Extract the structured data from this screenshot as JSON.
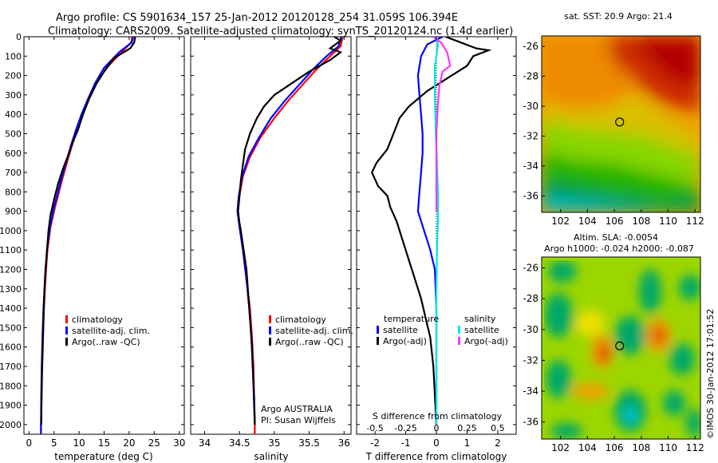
{
  "header": {
    "line1": "Argo profile: CS 5901634_157 25-Jan-2012 20120128_254 31.059S 106.394E",
    "line2": "Climatology: CARS2009. Satellite-adjusted climatology: synTS_20120124.nc (1.4d earlier)"
  },
  "side_label": "©IMOS 30-Jan-2012 17:01:52",
  "colors": {
    "climatology": "#ff0000",
    "satellite": "#0000ff",
    "argo": "#000000",
    "satellite_salinity": "#00e5e5",
    "argo_salinity": "#ff33ff"
  },
  "chart_data": [
    {
      "type": "line",
      "xlabel": "temperature (deg C)",
      "ylabel": "",
      "xlim": [
        -1,
        31
      ],
      "ylim": [
        2050,
        0
      ],
      "xticks": [
        0,
        5,
        10,
        15,
        20,
        25,
        30
      ],
      "yticks": [
        0,
        100,
        200,
        300,
        400,
        500,
        600,
        700,
        800,
        900,
        1000,
        1100,
        1200,
        1300,
        1400,
        1500,
        1600,
        1700,
        1800,
        1900,
        2000
      ],
      "legend": [
        "climatology",
        "satellite-adj. clim.",
        "Argo(..raw -QC)"
      ],
      "series": [
        {
          "name": "climatology",
          "color": "#ff0000",
          "points": [
            [
              20.6,
              0
            ],
            [
              20.4,
              30
            ],
            [
              18.5,
              80
            ],
            [
              15.5,
              160
            ],
            [
              13.5,
              240
            ],
            [
              12,
              320
            ],
            [
              10.7,
              400
            ],
            [
              9.6,
              480
            ],
            [
              8.6,
              560
            ],
            [
              7.7,
              640
            ],
            [
              6.8,
              720
            ],
            [
              6,
              800
            ],
            [
              5.2,
              880
            ],
            [
              4.3,
              980
            ],
            [
              3.7,
              1100
            ],
            [
              3.3,
              1250
            ],
            [
              3,
              1400
            ],
            [
              2.8,
              1550
            ],
            [
              2.6,
              1700
            ],
            [
              2.5,
              1850
            ],
            [
              2.4,
              2000
            ],
            [
              2.4,
              2050
            ]
          ]
        },
        {
          "name": "satellite-adj. clim.",
          "color": "#0000ff",
          "points": [
            [
              20.8,
              0
            ],
            [
              20.5,
              30
            ],
            [
              18,
              80
            ],
            [
              15,
              160
            ],
            [
              13.2,
              240
            ],
            [
              11.8,
              320
            ],
            [
              10.5,
              400
            ],
            [
              9.4,
              480
            ],
            [
              8.4,
              560
            ],
            [
              7.5,
              640
            ],
            [
              6.6,
              720
            ],
            [
              5.8,
              800
            ],
            [
              5,
              880
            ],
            [
              4.2,
              980
            ],
            [
              3.6,
              1100
            ],
            [
              3.2,
              1250
            ],
            [
              2.9,
              1400
            ],
            [
              2.7,
              1550
            ],
            [
              2.55,
              1700
            ],
            [
              2.45,
              1850
            ],
            [
              2.4,
              2000
            ],
            [
              2.4,
              2050
            ]
          ]
        },
        {
          "name": "Argo(..raw -QC)",
          "color": "#000000",
          "points": [
            [
              21.2,
              0
            ],
            [
              21,
              30
            ],
            [
              20.2,
              60
            ],
            [
              17,
              110
            ],
            [
              15,
              180
            ],
            [
              13.5,
              240
            ],
            [
              12,
              320
            ],
            [
              10.8,
              400
            ],
            [
              9.8,
              480
            ],
            [
              8.8,
              540
            ],
            [
              8,
              600
            ],
            [
              6.8,
              680
            ],
            [
              5.8,
              760
            ],
            [
              5,
              840
            ],
            [
              4.3,
              920
            ],
            [
              3.9,
              1000
            ],
            [
              3.6,
              1100
            ],
            [
              3.3,
              1200
            ],
            [
              3.1,
              1300
            ],
            [
              2.9,
              1450
            ],
            [
              2.75,
              1600
            ],
            [
              2.6,
              1750
            ],
            [
              2.5,
              1900
            ],
            [
              2.45,
              2000
            ]
          ]
        }
      ]
    },
    {
      "type": "line",
      "xlabel": "salinity",
      "ylabel": "",
      "xlim": [
        33.8,
        36.1
      ],
      "ylim": [
        2050,
        0
      ],
      "xticks": [
        34,
        34.5,
        35,
        35.5,
        36
      ],
      "xticklabels": [
        "34",
        "34.5",
        "35",
        "35.5",
        "36"
      ],
      "legend": [
        "climatology",
        "satellite-adj. clim.",
        "Argo(..raw -QC)"
      ],
      "annotations": [
        "Argo AUSTRALIA",
        "PI: Susan Wijffels"
      ],
      "series": [
        {
          "name": "climatology",
          "color": "#ff0000",
          "points": [
            [
              35.98,
              0
            ],
            [
              35.95,
              50
            ],
            [
              35.8,
              100
            ],
            [
              35.6,
              170
            ],
            [
              35.4,
              250
            ],
            [
              35.2,
              330
            ],
            [
              35.0,
              420
            ],
            [
              34.8,
              520
            ],
            [
              34.65,
              620
            ],
            [
              34.55,
              720
            ],
            [
              34.5,
              820
            ],
            [
              34.48,
              900
            ],
            [
              34.5,
              980
            ],
            [
              34.55,
              1100
            ],
            [
              34.6,
              1250
            ],
            [
              34.65,
              1400
            ],
            [
              34.68,
              1550
            ],
            [
              34.7,
              1700
            ],
            [
              34.71,
              1850
            ],
            [
              34.72,
              2000
            ],
            [
              34.72,
              2050
            ]
          ]
        },
        {
          "name": "satellite-adj. clim.",
          "color": "#0000ff",
          "points": [
            [
              35.96,
              0
            ],
            [
              35.92,
              50
            ],
            [
              35.75,
              100
            ],
            [
              35.55,
              170
            ],
            [
              35.35,
              250
            ],
            [
              35.15,
              330
            ],
            [
              34.95,
              420
            ],
            [
              34.78,
              520
            ],
            [
              34.63,
              620
            ],
            [
              34.54,
              720
            ],
            [
              34.49,
              820
            ],
            [
              34.47,
              900
            ],
            [
              34.5,
              980
            ],
            [
              34.55,
              1100
            ],
            [
              34.6,
              1250
            ],
            [
              34.64,
              1400
            ],
            [
              34.67,
              1550
            ],
            [
              34.69,
              1700
            ],
            [
              34.71,
              1850
            ],
            [
              34.72,
              2000
            ]
          ]
        },
        {
          "name": "Argo(..raw -QC)",
          "color": "#000000",
          "points": [
            [
              35.86,
              0
            ],
            [
              35.95,
              20
            ],
            [
              35.8,
              60
            ],
            [
              35.95,
              80
            ],
            [
              35.8,
              120
            ],
            [
              35.5,
              180
            ],
            [
              35.25,
              240
            ],
            [
              35.0,
              300
            ],
            [
              34.85,
              360
            ],
            [
              34.75,
              420
            ],
            [
              34.65,
              500
            ],
            [
              34.58,
              580
            ],
            [
              34.55,
              660
            ],
            [
              34.52,
              740
            ],
            [
              34.5,
              820
            ],
            [
              34.48,
              900
            ],
            [
              34.5,
              960
            ],
            [
              34.52,
              1000
            ],
            [
              34.56,
              1100
            ],
            [
              34.6,
              1200
            ],
            [
              34.62,
              1300
            ],
            [
              34.64,
              1400
            ],
            [
              34.66,
              1500
            ],
            [
              34.68,
              1600
            ],
            [
              34.69,
              1700
            ],
            [
              34.7,
              1800
            ],
            [
              34.71,
              1900
            ],
            [
              34.72,
              2000
            ]
          ]
        }
      ]
    },
    {
      "type": "line",
      "xlabel": "T difference from climatology",
      "top_label": "S difference from climatology",
      "xlim": [
        -2.6,
        2.6
      ],
      "ylim": [
        2050,
        0
      ],
      "xticks": [
        -2,
        -1,
        0,
        1,
        2
      ],
      "top_xticks": [
        -0.5,
        -0.25,
        0,
        0.25,
        0.5
      ],
      "top_xticklabels": [
        "-0.5",
        "-0.25",
        "0",
        "0.25",
        "0.5"
      ],
      "legend": {
        "temperature": [
          "satellite",
          "Argo(-adj)"
        ],
        "salinity": [
          "satellite",
          "Argo(-adj)"
        ]
      },
      "legend_titles": {
        "temperature": "temperature",
        "salinity": "salinity"
      },
      "series": [
        {
          "name": "satellite",
          "group": "temperature",
          "color": "#0000ff",
          "points": [
            [
              0.2,
              0
            ],
            [
              -0.3,
              40
            ],
            [
              -0.5,
              100
            ],
            [
              -0.6,
              200
            ],
            [
              -0.55,
              300
            ],
            [
              -0.5,
              400
            ],
            [
              -0.45,
              500
            ],
            [
              -0.45,
              600
            ],
            [
              -0.5,
              700
            ],
            [
              -0.55,
              800
            ],
            [
              -0.6,
              900
            ],
            [
              -0.4,
              1000
            ],
            [
              -0.2,
              1100
            ],
            [
              -0.05,
              1200
            ],
            [
              0,
              1400
            ],
            [
              0,
              1600
            ],
            [
              0,
              1800
            ],
            [
              0,
              2000
            ]
          ]
        },
        {
          "name": "Argo(-adj)",
          "group": "temperature",
          "color": "#000000",
          "points": [
            [
              0.3,
              0
            ],
            [
              0.8,
              30
            ],
            [
              1.3,
              60
            ],
            [
              1.7,
              70
            ],
            [
              1.2,
              100
            ],
            [
              1.0,
              150
            ],
            [
              0.5,
              200
            ],
            [
              -0.3,
              280
            ],
            [
              -0.9,
              360
            ],
            [
              -1.2,
              420
            ],
            [
              -1.4,
              500
            ],
            [
              -1.6,
              580
            ],
            [
              -1.95,
              650
            ],
            [
              -2.1,
              700
            ],
            [
              -1.9,
              770
            ],
            [
              -1.6,
              820
            ],
            [
              -1.5,
              880
            ],
            [
              -1.3,
              950
            ],
            [
              -1.1,
              1050
            ],
            [
              -0.9,
              1150
            ],
            [
              -0.7,
              1250
            ],
            [
              -0.5,
              1350
            ],
            [
              -0.35,
              1450
            ],
            [
              -0.2,
              1550
            ],
            [
              -0.1,
              1700
            ],
            [
              -0.05,
              1850
            ],
            [
              0,
              2000
            ]
          ]
        },
        {
          "name": "satellite",
          "group": "salinity",
          "color": "#00e5e5",
          "points": [
            [
              0.02,
              0
            ],
            [
              0.05,
              50
            ],
            [
              -0.05,
              150
            ],
            [
              -0.05,
              300
            ],
            [
              -0.02,
              500
            ],
            [
              0.02,
              650
            ],
            [
              0.05,
              800
            ],
            [
              0.05,
              950
            ],
            [
              0.02,
              1100
            ],
            [
              0,
              1300
            ],
            [
              0,
              1600
            ],
            [
              0,
              2000
            ]
          ]
        },
        {
          "name": "Argo(-adj)",
          "group": "salinity",
          "color": "#ff33ff",
          "points": [
            [
              -0.1,
              0
            ],
            [
              0.15,
              30
            ],
            [
              0.35,
              80
            ],
            [
              0.45,
              150
            ],
            [
              0.2,
              180
            ],
            [
              0.1,
              250
            ],
            [
              0.05,
              350
            ],
            [
              0,
              500
            ],
            [
              0,
              700
            ],
            [
              0,
              900
            ]
          ]
        }
      ]
    },
    {
      "type": "heatmap",
      "title": "sat. SST: 20.9 Argo: 21.4",
      "xticks": [
        102,
        104,
        106,
        108,
        110,
        112
      ],
      "yticks": [
        -26,
        -28,
        -30,
        -32,
        -34,
        -36
      ],
      "xlim": [
        100.6,
        112.4
      ],
      "ylim": [
        -25.3,
        -37.1
      ],
      "marker": {
        "lon": 106.394,
        "lat": -31.059
      }
    },
    {
      "type": "heatmap",
      "title": "Altim. SLA: -0.0054",
      "subtitle": "Argo h1000: -0.024 h2000: -0.087",
      "xticks": [
        102,
        104,
        106,
        108,
        110,
        112
      ],
      "yticks": [
        -26,
        -28,
        -30,
        -32,
        -34,
        -36
      ],
      "xlim": [
        100.6,
        112.4
      ],
      "ylim": [
        -25.3,
        -37.1
      ],
      "marker": {
        "lon": 106.394,
        "lat": -31.059
      }
    }
  ]
}
